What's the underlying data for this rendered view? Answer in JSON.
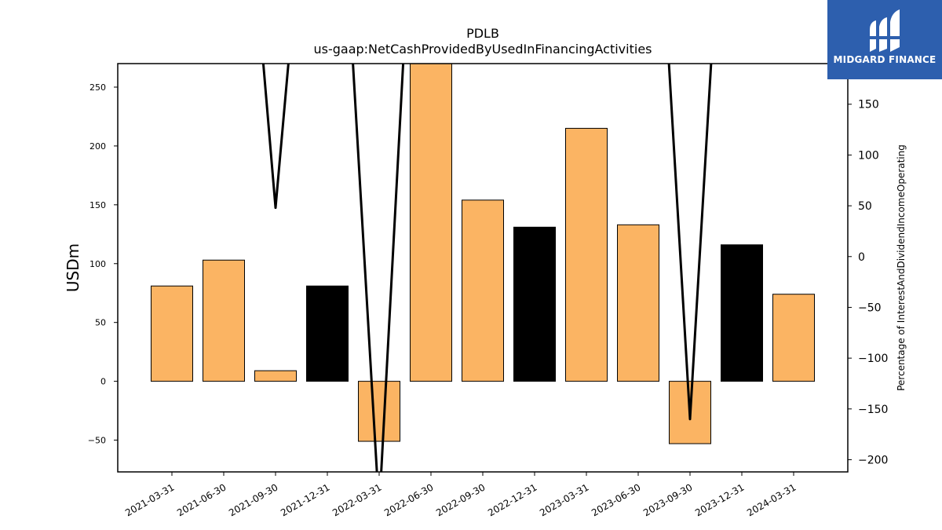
{
  "chart_data": {
    "type": "bar",
    "title": "PDLB",
    "subtitle": "us-gaap:NetCashProvidedByUsedInFinancingActivities",
    "ylabel": "USDm",
    "y2label": "Percentage of InterestAndDividendIncomeOperating",
    "categories": [
      "2021-03-31",
      "2021-06-30",
      "2021-09-30",
      "2021-12-31",
      "2022-03-31",
      "2022-06-30",
      "2022-09-30",
      "2022-12-31",
      "2023-03-31",
      "2023-06-30",
      "2023-09-30",
      "2023-12-31",
      "2024-03-31"
    ],
    "values": [
      81,
      103,
      9,
      81,
      -51,
      275,
      154,
      131,
      215,
      133,
      -53,
      116,
      74
    ],
    "bar_colors": [
      "#fbb463",
      "#fbb463",
      "#fbb463",
      "#000000",
      "#fbb463",
      "#fbb463",
      "#fbb463",
      "#000000",
      "#fbb463",
      "#fbb463",
      "#fbb463",
      "#000000",
      "#fbb463"
    ],
    "ylim": [
      -77,
      270
    ],
    "yticks": [
      -50,
      0,
      50,
      100,
      150,
      200,
      250
    ],
    "y2lim": [
      -212,
      190
    ],
    "y2ticks": [
      -200,
      -150,
      -100,
      -50,
      0,
      50,
      100,
      150
    ],
    "line_series": {
      "values": [
        700,
        650,
        48,
        620,
        -250,
        700,
        700,
        700,
        700,
        700,
        -160,
        700,
        700
      ]
    },
    "grid": false,
    "legend": "none"
  },
  "logo": {
    "text": "MIDGARD FINANCE"
  },
  "colors": {
    "bar_orange": "#fbb463",
    "bar_black": "#000000",
    "logo_bg": "#2d5fae"
  }
}
